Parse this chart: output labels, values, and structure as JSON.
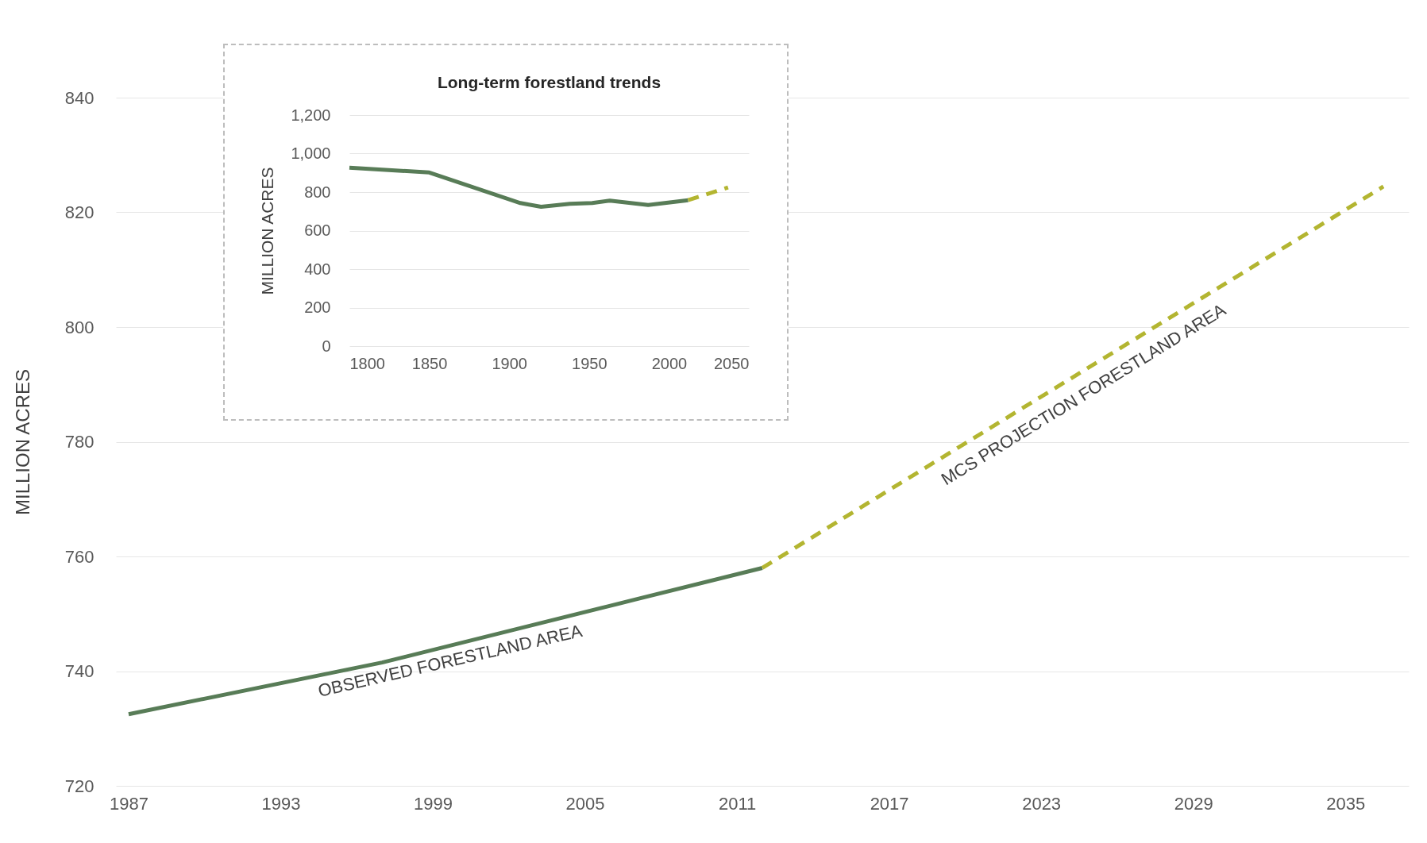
{
  "chart_data": [
    {
      "type": "line",
      "ylabel": "MILLION ACRES",
      "xlim": [
        1986.5,
        2037.5
      ],
      "ylim": [
        720,
        840
      ],
      "xticks": [
        1987,
        1993,
        1999,
        2005,
        2011,
        2017,
        2023,
        2029,
        2035
      ],
      "yticks": [
        720,
        740,
        760,
        780,
        800,
        820,
        840
      ],
      "grid": "y",
      "series": [
        {
          "name": "OBSERVED FORESTLAND AREA",
          "color": "#587c57",
          "line_style": "solid",
          "x": [
            1987,
            1997,
            2007,
            2012
          ],
          "values": [
            732.5,
            741.5,
            752.5,
            758
          ]
        },
        {
          "name": "MCS PROJECTION FORESTLAND AREA",
          "color": "#b3b531",
          "line_style": "dashed",
          "x": [
            2012,
            2036.5
          ],
          "values": [
            758,
            824.5
          ]
        }
      ]
    },
    {
      "type": "line",
      "title": "Long-term forestland trends",
      "ylabel": "MILLION ACRES",
      "xlim": [
        1800,
        2050
      ],
      "ylim": [
        0,
        1200
      ],
      "xticks": [
        1800,
        1850,
        1900,
        1950,
        2000,
        2050
      ],
      "yticks": [
        0,
        200,
        400,
        600,
        800,
        {
          "value": 1000,
          "label": "1,000"
        },
        {
          "value": 1200,
          "label": "1,200"
        }
      ],
      "grid": "y",
      "series": [
        {
          "color": "#587c57",
          "line_style": "solid",
          "x": [
            1800,
            1850,
            1907,
            1920,
            1938,
            1952,
            1963,
            1987,
            2012
          ],
          "values": [
            927,
            902,
            743,
            724,
            739,
            743,
            756,
            733,
            758
          ]
        },
        {
          "color": "#b3b531",
          "line_style": "dashed",
          "x": [
            2012,
            2037
          ],
          "values": [
            758,
            824
          ]
        }
      ]
    }
  ]
}
